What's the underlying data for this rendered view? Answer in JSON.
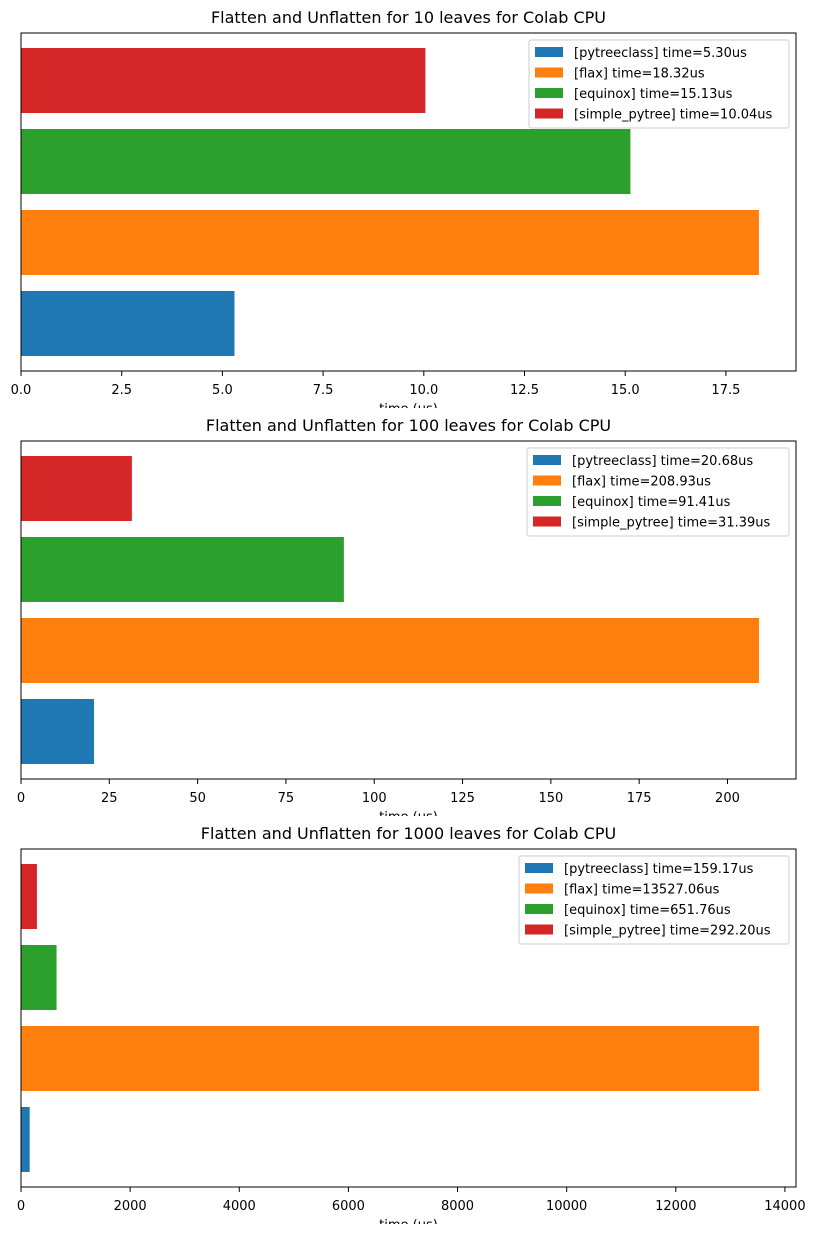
{
  "chart_data": [
    {
      "type": "bar",
      "orientation": "horizontal",
      "title": "Flatten and Unflatten for 10 leaves for Colab CPU",
      "xlabel": "time (us)",
      "ylabel": "",
      "xlim": [
        0,
        19.24
      ],
      "xticks": [
        0,
        2.5,
        5,
        7.5,
        10,
        12.5,
        15,
        17.5
      ],
      "xtick_labels": [
        "0.0",
        "2.5",
        "5.0",
        "7.5",
        "10.0",
        "12.5",
        "15.0",
        "17.5"
      ],
      "grid": false,
      "legend_position": "top-right",
      "categories": [
        "pytreeclass",
        "flax",
        "equinox",
        "simple_pytree"
      ],
      "values": [
        5.3,
        18.32,
        15.13,
        10.04
      ],
      "colors": [
        "#1f77b4",
        "#ff7f0e",
        "#2ca02c",
        "#d62728"
      ],
      "legend": [
        "[pytreeclass] time=5.30us",
        "[flax] time=18.32us",
        "[equinox] time=15.13us",
        "[simple_pytree] time=10.04us"
      ]
    },
    {
      "type": "bar",
      "orientation": "horizontal",
      "title": "Flatten and Unflatten for 100 leaves for Colab CPU",
      "xlabel": "time (us)",
      "ylabel": "",
      "xlim": [
        0,
        219.4
      ],
      "xticks": [
        0,
        25,
        50,
        75,
        100,
        125,
        150,
        175,
        200
      ],
      "xtick_labels": [
        "0",
        "25",
        "50",
        "75",
        "100",
        "125",
        "150",
        "175",
        "200"
      ],
      "grid": false,
      "legend_position": "top-right",
      "categories": [
        "pytreeclass",
        "flax",
        "equinox",
        "simple_pytree"
      ],
      "values": [
        20.68,
        208.93,
        91.41,
        31.39
      ],
      "colors": [
        "#1f77b4",
        "#ff7f0e",
        "#2ca02c",
        "#d62728"
      ],
      "legend": [
        "[pytreeclass] time=20.68us",
        "[flax] time=208.93us",
        "[equinox] time=91.41us",
        "[simple_pytree] time=31.39us"
      ]
    },
    {
      "type": "bar",
      "orientation": "horizontal",
      "title": "Flatten and Unflatten for 1000 leaves for Colab CPU",
      "xlabel": "time (us)",
      "ylabel": "",
      "xlim": [
        0,
        14203
      ],
      "xticks": [
        0,
        2000,
        4000,
        6000,
        8000,
        10000,
        12000,
        14000
      ],
      "xtick_labels": [
        "0",
        "2000",
        "4000",
        "6000",
        "8000",
        "10000",
        "12000",
        "14000"
      ],
      "grid": false,
      "legend_position": "top-right",
      "categories": [
        "pytreeclass",
        "flax",
        "equinox",
        "simple_pytree"
      ],
      "values": [
        159.17,
        13527.06,
        651.76,
        292.2
      ],
      "colors": [
        "#1f77b4",
        "#ff7f0e",
        "#2ca02c",
        "#d62728"
      ],
      "legend": [
        "[pytreeclass] time=159.17us",
        "[flax] time=13527.06us",
        "[equinox] time=651.76us",
        "[simple_pytree] time=292.20us"
      ]
    }
  ]
}
